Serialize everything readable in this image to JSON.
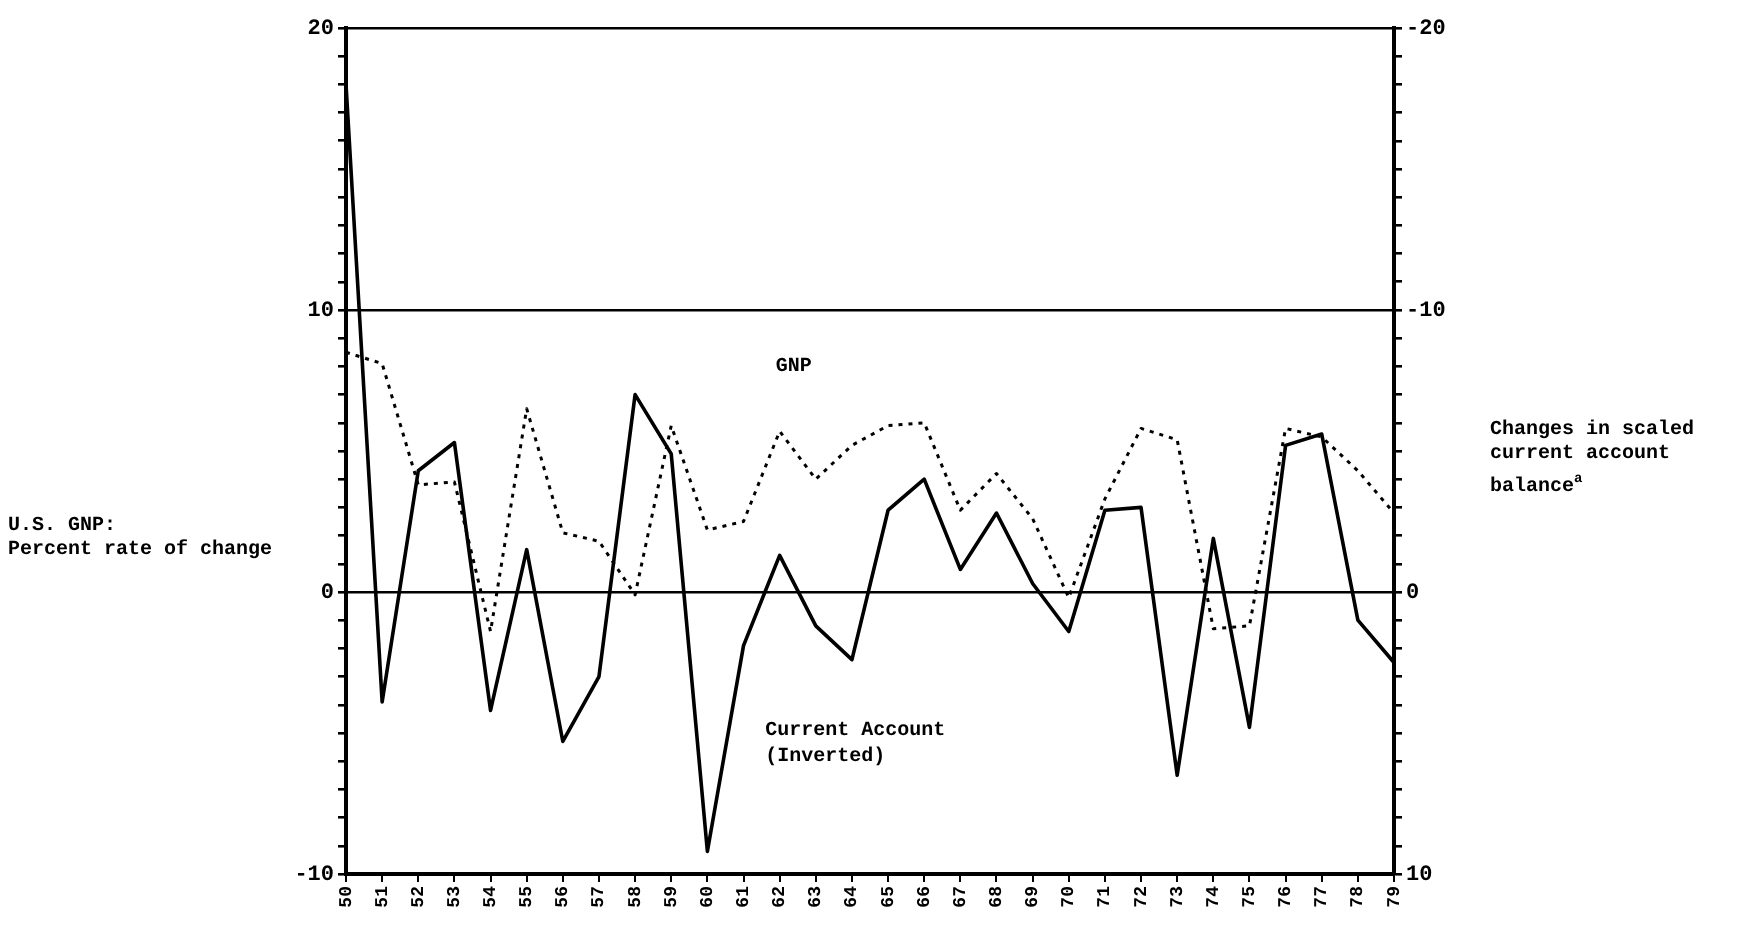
{
  "chart_data": {
    "type": "line",
    "ylabel": "U.S. GNP:\nPercent rate of change",
    "y2label": "Changes in scaled\ncurrent account\nbalance$^{a}$",
    "categories": [
      "50",
      "51",
      "52",
      "53",
      "54",
      "55",
      "56",
      "57",
      "58",
      "59",
      "60",
      "61",
      "62",
      "63",
      "64",
      "65",
      "66",
      "67",
      "68",
      "69",
      "70",
      "71",
      "72",
      "73",
      "74",
      "75",
      "76",
      "77",
      "78",
      "79"
    ],
    "series": [
      {
        "name": "GNP",
        "color": "#000000",
        "line_style": "dotted",
        "values": [
          8.5,
          8.1,
          3.8,
          3.9,
          -1.4,
          6.5,
          2.1,
          1.8,
          -0.1,
          5.9,
          2.2,
          2.5,
          5.7,
          4.0,
          5.2,
          5.9,
          6.0,
          2.9,
          4.2,
          2.6,
          -0.2,
          3.3,
          5.8,
          5.4,
          -1.3,
          -1.2,
          5.8,
          5.5,
          4.3,
          2.8
        ]
      },
      {
        "name": "Current Account\n(Inverted)",
        "color": "#000000",
        "line_style": "solid",
        "axis": "y2",
        "values": [
          -18,
          3.9,
          -4.3,
          -5.3,
          4.2,
          -1.5,
          5.3,
          3.0,
          -7.0,
          -4.9,
          9.2,
          1.9,
          -1.3,
          1.2,
          2.4,
          -2.9,
          -4.0,
          -0.8,
          -2.8,
          -0.3,
          1.4,
          -2.9,
          -3.0,
          6.5,
          -1.9,
          4.8,
          -5.2,
          -5.6,
          1.0,
          2.5
        ]
      }
    ],
    "ylim": [
      -10,
      20
    ],
    "yticks": [
      -10,
      {
        "value": -9,
        "label": null
      },
      {
        "value": -8,
        "label": null
      },
      {
        "value": -7,
        "label": null
      },
      {
        "value": -6,
        "label": null
      },
      {
        "value": -5,
        "label": null
      },
      {
        "value": -4,
        "label": null
      },
      {
        "value": -3,
        "label": null
      },
      {
        "value": -2,
        "label": null
      },
      {
        "value": -1,
        "label": null
      },
      0,
      {
        "value": 1,
        "label": null
      },
      {
        "value": 2,
        "label": null
      },
      {
        "value": 3,
        "label": null
      },
      {
        "value": 4,
        "label": null
      },
      {
        "value": 5,
        "label": null
      },
      {
        "value": 6,
        "label": null
      },
      {
        "value": 7,
        "label": null
      },
      {
        "value": 8,
        "label": null
      },
      {
        "value": 9,
        "label": null
      },
      10,
      {
        "value": 11,
        "label": null
      },
      {
        "value": 12,
        "label": null
      },
      {
        "value": 13,
        "label": null
      },
      {
        "value": 14,
        "label": null
      },
      {
        "value": 15,
        "label": null
      },
      {
        "value": 16,
        "label": null
      },
      {
        "value": 17,
        "label": null
      },
      {
        "value": 18,
        "label": null
      },
      {
        "value": 19,
        "label": null
      },
      20
    ],
    "y2lim": [
      10,
      -20
    ],
    "y2ticks": [
      -20,
      {
        "value": -19,
        "label": null
      },
      {
        "value": -18,
        "label": null
      },
      {
        "value": -17,
        "label": null
      },
      {
        "value": -16,
        "label": null
      },
      {
        "value": -15,
        "label": null
      },
      {
        "value": -14,
        "label": null
      },
      {
        "value": -13,
        "label": null
      },
      {
        "value": -12,
        "label": null
      },
      {
        "value": -11,
        "label": null
      },
      -10,
      {
        "value": -9,
        "label": null
      },
      {
        "value": -8,
        "label": null
      },
      {
        "value": -7,
        "label": null
      },
      {
        "value": -6,
        "label": null
      },
      {
        "value": -5,
        "label": null
      },
      {
        "value": -4,
        "label": null
      },
      {
        "value": -3,
        "label": null
      },
      {
        "value": -2,
        "label": null
      },
      {
        "value": -1,
        "label": null
      },
      0,
      {
        "value": 1,
        "label": null
      },
      {
        "value": 2,
        "label": null
      },
      {
        "value": 3,
        "label": null
      },
      {
        "value": 4,
        "label": null
      },
      {
        "value": 5,
        "label": null
      },
      {
        "value": 6,
        "label": null
      },
      {
        "value": 7,
        "label": null
      },
      {
        "value": 8,
        "label": null
      },
      {
        "value": 9,
        "label": null
      },
      10
    ],
    "grid": "y",
    "legend": false,
    "marker": "none"
  }
}
